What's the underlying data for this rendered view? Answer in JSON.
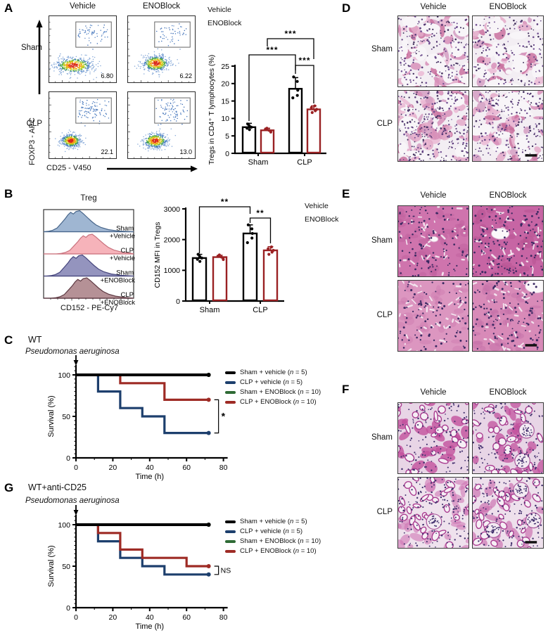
{
  "colors": {
    "vehicle_black": "#000000",
    "enoblock_red": "#9a2123",
    "survival_blue": "#1d3f6d",
    "survival_green": "#2f6b35",
    "survival_red": "#9e2b25"
  },
  "panelA": {
    "label": "A",
    "flow": {
      "col_headers": [
        "Vehicle",
        "ENOBlock"
      ],
      "row_labels": [
        "Sham",
        "CLP"
      ],
      "y_axis_label": "FOXP3 - APC",
      "x_axis_label": "CD25 - V450",
      "gate_values": [
        "6.80",
        "6.22",
        "22.1",
        "13.0"
      ]
    },
    "legend": [
      "Vehicle",
      "ENOBlock"
    ]
  },
  "panelB": {
    "label": "B",
    "hist": {
      "title": "Treg",
      "x_axis_label": "CD152 - PE-Cy7",
      "series": [
        {
          "line1": "Sham",
          "line2": "+Vehicle",
          "fill": "#8ea9ca",
          "stroke": "#47658a"
        },
        {
          "line1": "CLP",
          "line2": "+Vehicle",
          "fill": "#f4a6ae",
          "stroke": "#c9727e"
        },
        {
          "line1": "Sham",
          "line2": "+ENOBlock",
          "fill": "#8181b3",
          "stroke": "#45457c"
        },
        {
          "line1": "CLP",
          "line2": "+ENOBlock",
          "fill": "#a87e84",
          "stroke": "#5f3a43"
        }
      ]
    },
    "legend": [
      "Vehicle",
      "ENOBlock"
    ]
  },
  "panelC": {
    "label": "C",
    "title": "WT",
    "pathogen": "Pseudomonas aeruginosa",
    "legend": [
      {
        "pre": "Sham + vehicle (",
        "n": "n",
        "post": " = 5)",
        "color": "#000000"
      },
      {
        "pre": "CLP + vehicle (",
        "n": "n",
        "post": " = 5)",
        "color": "#1d3f6d"
      },
      {
        "pre": "Sham + ENOBlock (",
        "n": "n",
        "post": " = 10)",
        "color": "#2f6b35"
      },
      {
        "pre": "CLP + ENOBlock (",
        "n": "n",
        "post": " = 10)",
        "color": "#9e2b25"
      }
    ]
  },
  "panelG": {
    "label": "G",
    "title": "WT+anti-CD25",
    "pathogen": "Pseudomonas aeruginosa",
    "legend": [
      {
        "pre": "Sham + vehicle (",
        "n": "n",
        "post": " = 5)",
        "color": "#000000"
      },
      {
        "pre": "CLP + vehicle (",
        "n": "n",
        "post": " = 5)",
        "color": "#1d3f6d"
      },
      {
        "pre": "Sham + ENOBlock (",
        "n": "n",
        "post": " = 10)",
        "color": "#2f6b35"
      },
      {
        "pre": "CLP + ENOBlock (",
        "n": "n",
        "post": " = 10)",
        "color": "#9e2b25"
      }
    ]
  },
  "panelD": {
    "label": "D",
    "tissue": "lung",
    "col_headers": [
      "Vehicle",
      "ENOBlock"
    ],
    "row_labels": [
      "Sham",
      "CLP"
    ]
  },
  "panelE": {
    "label": "E",
    "tissue": "liver",
    "col_headers": [
      "Vehicle",
      "ENOBlock"
    ],
    "row_labels": [
      "Sham",
      "CLP"
    ]
  },
  "panelF": {
    "label": "F",
    "tissue": "kidney",
    "col_headers": [
      "Vehicle",
      "ENOBlock"
    ],
    "row_labels": [
      "Sham",
      "CLP"
    ]
  },
  "chart_data": [
    {
      "id": "tregs_in_cd4_bar",
      "type": "bar",
      "ylabel": "Tregs in CD4⁺ T lymphocytes (%)",
      "categories": [
        "Sham",
        "CLP"
      ],
      "ylim": [
        0,
        25
      ],
      "yticks": [
        0,
        5,
        10,
        15,
        20,
        25
      ],
      "series": [
        {
          "name": "Vehicle",
          "color": "#000000",
          "values": [
            7.5,
            18.5
          ],
          "errors": [
            1.1,
            3.2
          ],
          "points": [
            [
              6.8,
              7.2,
              7.5,
              7.9,
              8.4
            ],
            [
              15.9,
              16.6,
              18.1,
              20.6,
              21.9
            ]
          ]
        },
        {
          "name": "ENOBlock",
          "color": "#9a2123",
          "values": [
            6.6,
            12.6
          ],
          "errors": [
            0.6,
            1.0
          ],
          "points": [
            [
              6.1,
              6.4,
              6.6,
              6.9,
              7.2
            ],
            [
              11.7,
              12.2,
              12.6,
              13.1,
              13.6
            ]
          ]
        }
      ],
      "significance": [
        {
          "g1": 0,
          "s1": 1,
          "g2": 1,
          "s2": 1,
          "label": "***"
        },
        {
          "g1": 0,
          "s1": 0,
          "g2": 1,
          "s2": 0,
          "label": "***"
        },
        {
          "g1": 1,
          "s1": 0,
          "g2": 1,
          "s2": 1,
          "label": "***"
        }
      ]
    },
    {
      "id": "cd152_mfi_bar",
      "type": "bar",
      "ylabel": "CD152 MFI in Tregs",
      "categories": [
        "Sham",
        "CLP"
      ],
      "ylim": [
        0,
        3000
      ],
      "yticks": [
        0,
        1000,
        2000,
        3000
      ],
      "series": [
        {
          "name": "Vehicle",
          "color": "#000000",
          "values": [
            1400,
            2200
          ],
          "errors": [
            120,
            280
          ],
          "points": [
            [
              1290,
              1360,
              1400,
              1450,
              1520
            ],
            [
              1900,
              2050,
              2200,
              2350,
              2480
            ]
          ]
        },
        {
          "name": "ENOBlock",
          "color": "#9a2123",
          "values": [
            1430,
            1650
          ],
          "errors": [
            60,
            120
          ],
          "points": [
            [
              1350,
              1400,
              1430,
              1460,
              1500
            ],
            [
              1520,
              1590,
              1650,
              1700,
              1760
            ]
          ]
        }
      ],
      "significance": [
        {
          "g1": 0,
          "s1": 0,
          "g2": 1,
          "s2": 0,
          "label": "**"
        },
        {
          "g1": 1,
          "s1": 0,
          "g2": 1,
          "s2": 1,
          "label": "**"
        }
      ]
    },
    {
      "id": "survival_wt",
      "type": "line",
      "title": "WT",
      "xlabel": "Time (h)",
      "ylabel": "Survival (%)",
      "xlim": [
        0,
        80
      ],
      "ylim": [
        0,
        100
      ],
      "xticks": [
        0,
        20,
        40,
        60,
        80
      ],
      "yticks": [
        0,
        50,
        100
      ],
      "series": [
        {
          "name": "Sham + vehicle",
          "color": "#000000",
          "steps": [
            [
              0,
              100
            ],
            [
              72,
              100
            ]
          ]
        },
        {
          "name": "CLP + vehicle",
          "color": "#1d3f6d",
          "steps": [
            [
              0,
              100
            ],
            [
              12,
              100
            ],
            [
              12,
              80
            ],
            [
              24,
              80
            ],
            [
              24,
              60
            ],
            [
              36,
              60
            ],
            [
              36,
              50
            ],
            [
              48,
              50
            ],
            [
              48,
              30
            ],
            [
              72,
              30
            ]
          ]
        },
        {
          "name": "Sham + ENOBlock",
          "color": "#2f6b35",
          "steps": [
            [
              0,
              100
            ],
            [
              72,
              100
            ]
          ]
        },
        {
          "name": "CLP + ENOBlock",
          "color": "#9e2b25",
          "steps": [
            [
              0,
              100
            ],
            [
              24,
              100
            ],
            [
              24,
              90
            ],
            [
              48,
              90
            ],
            [
              48,
              70
            ],
            [
              72,
              70
            ]
          ]
        }
      ],
      "sig": {
        "label": "*",
        "y1": 70,
        "y2": 30
      }
    },
    {
      "id": "survival_wt_anti_cd25",
      "type": "line",
      "title": "WT+anti-CD25",
      "xlabel": "Time (h)",
      "ylabel": "Survival (%)",
      "xlim": [
        0,
        80
      ],
      "ylim": [
        0,
        100
      ],
      "xticks": [
        0,
        20,
        40,
        60,
        80
      ],
      "yticks": [
        0,
        50,
        100
      ],
      "series": [
        {
          "name": "Sham + vehicle",
          "color": "#000000",
          "steps": [
            [
              0,
              100
            ],
            [
              72,
              100
            ]
          ]
        },
        {
          "name": "CLP + vehicle",
          "color": "#1d3f6d",
          "steps": [
            [
              0,
              100
            ],
            [
              12,
              100
            ],
            [
              12,
              80
            ],
            [
              24,
              80
            ],
            [
              24,
              60
            ],
            [
              36,
              60
            ],
            [
              36,
              50
            ],
            [
              48,
              50
            ],
            [
              48,
              40
            ],
            [
              72,
              40
            ]
          ]
        },
        {
          "name": "Sham + ENOBlock",
          "color": "#2f6b35",
          "steps": [
            [
              0,
              100
            ],
            [
              72,
              100
            ]
          ]
        },
        {
          "name": "CLP + ENOBlock",
          "color": "#9e2b25",
          "steps": [
            [
              0,
              100
            ],
            [
              12,
              100
            ],
            [
              12,
              90
            ],
            [
              24,
              90
            ],
            [
              24,
              70
            ],
            [
              36,
              70
            ],
            [
              36,
              60
            ],
            [
              60,
              60
            ],
            [
              60,
              50
            ],
            [
              72,
              50
            ]
          ]
        }
      ],
      "sig": {
        "label": "NS",
        "y1": 50,
        "y2": 40
      }
    }
  ]
}
